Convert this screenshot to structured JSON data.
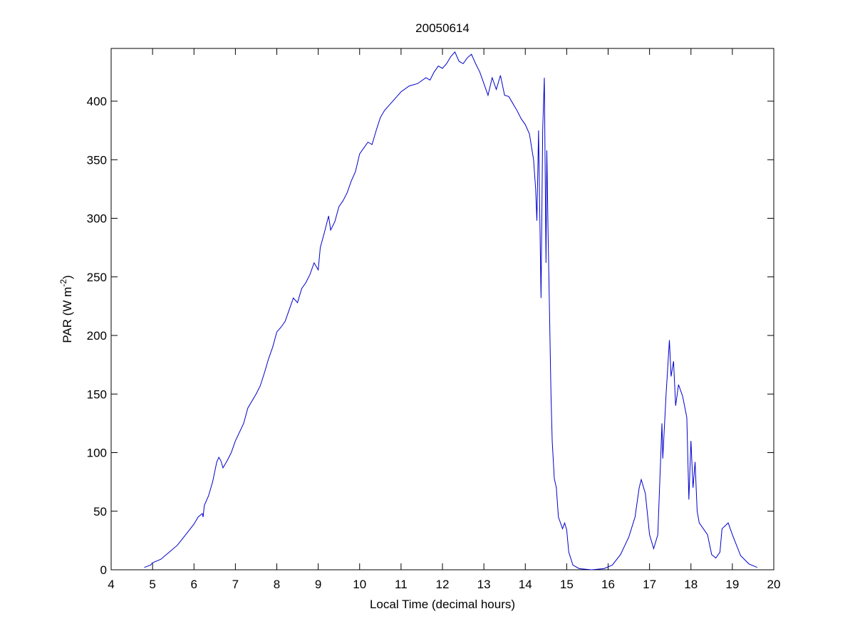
{
  "chart_data": {
    "type": "line",
    "title": "20050614",
    "xlabel": "Local Time (decimal hours)",
    "ylabel_parts": [
      "PAR (W m",
      "-2",
      ")"
    ],
    "xlim": [
      4,
      20
    ],
    "xticks": [
      4,
      5,
      6,
      7,
      8,
      9,
      10,
      11,
      12,
      13,
      14,
      15,
      16,
      17,
      18,
      19,
      20
    ],
    "ylim": [
      0,
      445
    ],
    "yticks": [
      0,
      50,
      100,
      150,
      200,
      250,
      300,
      350,
      400
    ],
    "grid": false,
    "series": [
      {
        "color": "#0000cc",
        "x": [
          4.8,
          4.95,
          5.0,
          5.2,
          5.4,
          5.6,
          5.8,
          6.0,
          6.1,
          6.2,
          6.22,
          6.25,
          6.35,
          6.45,
          6.55,
          6.6,
          6.65,
          6.7,
          6.8,
          6.9,
          7.0,
          7.2,
          7.3,
          7.5,
          7.6,
          7.7,
          7.8,
          7.9,
          8.0,
          8.1,
          8.2,
          8.3,
          8.4,
          8.5,
          8.6,
          8.7,
          8.8,
          8.9,
          9.0,
          9.05,
          9.15,
          9.25,
          9.3,
          9.4,
          9.5,
          9.6,
          9.7,
          9.8,
          9.9,
          10.0,
          10.1,
          10.2,
          10.3,
          10.4,
          10.5,
          10.6,
          10.7,
          10.8,
          10.9,
          11.0,
          11.2,
          11.4,
          11.6,
          11.7,
          11.8,
          11.9,
          12.0,
          12.1,
          12.2,
          12.3,
          12.4,
          12.5,
          12.6,
          12.7,
          12.8,
          12.9,
          13.0,
          13.1,
          13.2,
          13.3,
          13.4,
          13.5,
          13.6,
          13.7,
          13.8,
          13.9,
          14.0,
          14.1,
          14.2,
          14.25,
          14.28,
          14.32,
          14.38,
          14.42,
          14.46,
          14.5,
          14.52,
          14.55,
          14.58,
          14.62,
          14.65,
          14.7,
          14.75,
          14.8,
          14.9,
          14.95,
          15.0,
          15.05,
          15.15,
          15.3,
          15.6,
          15.9,
          16.1,
          16.3,
          16.5,
          16.65,
          16.75,
          16.8,
          16.9,
          17.0,
          17.1,
          17.2,
          17.3,
          17.32,
          17.4,
          17.48,
          17.52,
          17.58,
          17.63,
          17.7,
          17.8,
          17.9,
          17.95,
          18.0,
          18.05,
          18.1,
          18.15,
          18.2,
          18.3,
          18.4,
          18.5,
          18.6,
          18.7,
          18.75,
          18.9,
          19.0,
          19.2,
          19.4,
          19.6
        ],
        "values": [
          2,
          4,
          6,
          9,
          15,
          21,
          30,
          39,
          45,
          48,
          45,
          55,
          63,
          75,
          92,
          96,
          93,
          87,
          93,
          100,
          110,
          125,
          138,
          150,
          157,
          168,
          180,
          190,
          203,
          207,
          212,
          222,
          232,
          228,
          240,
          245,
          252,
          262,
          256,
          275,
          288,
          302,
          290,
          297,
          310,
          315,
          322,
          332,
          340,
          355,
          360,
          365,
          363,
          375,
          386,
          392,
          396,
          400,
          404,
          408,
          413,
          415,
          420,
          418,
          425,
          430,
          428,
          432,
          438,
          442,
          434,
          432,
          437,
          440,
          432,
          425,
          415,
          405,
          420,
          410,
          422,
          405,
          404,
          398,
          392,
          385,
          380,
          372,
          350,
          325,
          298,
          375,
          232,
          375,
          420,
          262,
          358,
          288,
          230,
          150,
          110,
          78,
          70,
          45,
          35,
          40,
          34,
          15,
          4,
          1,
          0,
          1,
          4,
          13,
          28,
          45,
          70,
          77,
          65,
          30,
          18,
          30,
          125,
          95,
          150,
          196,
          165,
          178,
          140,
          158,
          148,
          130,
          60,
          110,
          70,
          92,
          50,
          40,
          35,
          30,
          13,
          10,
          15,
          35,
          40,
          30,
          12,
          5,
          2
        ]
      }
    ]
  }
}
